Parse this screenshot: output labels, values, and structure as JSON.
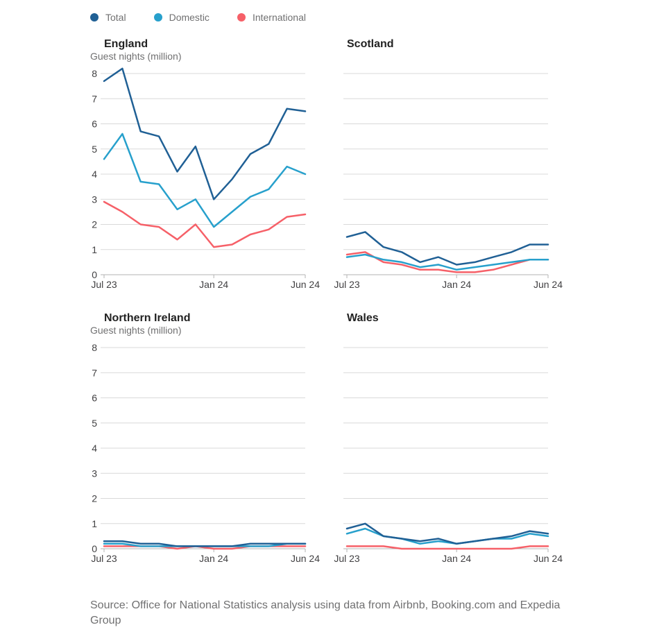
{
  "legend": [
    {
      "name": "Total",
      "color": "#206095"
    },
    {
      "name": "Domestic",
      "color": "#27a0cc"
    },
    {
      "name": "International",
      "color": "#f66068"
    }
  ],
  "source": "Source: Office for National Statistics analysis using data from Airbnb, Booking.com and Expedia Group",
  "chart_data": [
    {
      "type": "line",
      "title": "England",
      "ylabel": "Guest nights (million)",
      "ylim": [
        0,
        8
      ],
      "yticks": [
        0,
        1,
        2,
        3,
        4,
        5,
        6,
        7,
        8
      ],
      "x": [
        "Jul 23",
        "Aug 23",
        "Sep 23",
        "Oct 23",
        "Nov 23",
        "Dec 23",
        "Jan 24",
        "Feb 24",
        "Mar 24",
        "Apr 24",
        "May 24",
        "Jun 24"
      ],
      "xtick_labels": [
        "Jul 23",
        "Jan 24",
        "Jun 24"
      ],
      "grid": true,
      "series": [
        {
          "name": "Total",
          "values": [
            7.7,
            8.2,
            5.7,
            5.5,
            4.1,
            5.1,
            3.0,
            3.8,
            4.8,
            5.2,
            6.6,
            6.5
          ]
        },
        {
          "name": "Domestic",
          "values": [
            4.6,
            5.6,
            3.7,
            3.6,
            2.6,
            3.0,
            1.9,
            2.5,
            3.1,
            3.4,
            4.3,
            4.0
          ]
        },
        {
          "name": "International",
          "values": [
            2.9,
            2.5,
            2.0,
            1.9,
            1.4,
            2.0,
            1.1,
            1.2,
            1.6,
            1.8,
            2.3,
            2.4
          ]
        }
      ]
    },
    {
      "type": "line",
      "title": "Scotland",
      "ylabel": "",
      "ylim": [
        0,
        8
      ],
      "yticks": [
        0,
        1,
        2,
        3,
        4,
        5,
        6,
        7,
        8
      ],
      "x": [
        "Jul 23",
        "Aug 23",
        "Sep 23",
        "Oct 23",
        "Nov 23",
        "Dec 23",
        "Jan 24",
        "Feb 24",
        "Mar 24",
        "Apr 24",
        "May 24",
        "Jun 24"
      ],
      "xtick_labels": [
        "Jul 23",
        "Jan 24",
        "Jun 24"
      ],
      "grid": true,
      "series": [
        {
          "name": "Total",
          "values": [
            1.5,
            1.7,
            1.1,
            0.9,
            0.5,
            0.7,
            0.4,
            0.5,
            0.7,
            0.9,
            1.2,
            1.2
          ]
        },
        {
          "name": "Domestic",
          "values": [
            0.7,
            0.8,
            0.6,
            0.5,
            0.3,
            0.4,
            0.2,
            0.3,
            0.4,
            0.5,
            0.6,
            0.6
          ]
        },
        {
          "name": "International",
          "values": [
            0.8,
            0.9,
            0.5,
            0.4,
            0.2,
            0.2,
            0.1,
            0.1,
            0.2,
            0.4,
            0.6,
            0.6
          ]
        }
      ]
    },
    {
      "type": "line",
      "title": "Northern Ireland",
      "ylabel": "Guest nights (million)",
      "ylim": [
        0,
        8
      ],
      "yticks": [
        0,
        1,
        2,
        3,
        4,
        5,
        6,
        7,
        8
      ],
      "x": [
        "Jul 23",
        "Aug 23",
        "Sep 23",
        "Oct 23",
        "Nov 23",
        "Dec 23",
        "Jan 24",
        "Feb 24",
        "Mar 24",
        "Apr 24",
        "May 24",
        "Jun 24"
      ],
      "xtick_labels": [
        "Jul 23",
        "Jan 24",
        "Jun 24"
      ],
      "grid": true,
      "series": [
        {
          "name": "Total",
          "values": [
            0.3,
            0.3,
            0.2,
            0.2,
            0.1,
            0.1,
            0.1,
            0.1,
            0.2,
            0.2,
            0.2,
            0.2
          ]
        },
        {
          "name": "Domestic",
          "values": [
            0.2,
            0.2,
            0.1,
            0.1,
            0.1,
            0.1,
            0.1,
            0.1,
            0.1,
            0.1,
            0.2,
            0.2
          ]
        },
        {
          "name": "International",
          "values": [
            0.1,
            0.1,
            0.1,
            0.1,
            0.0,
            0.1,
            0.0,
            0.0,
            0.1,
            0.1,
            0.1,
            0.1
          ]
        }
      ]
    },
    {
      "type": "line",
      "title": "Wales",
      "ylabel": "",
      "ylim": [
        0,
        8
      ],
      "yticks": [
        0,
        1,
        2,
        3,
        4,
        5,
        6,
        7,
        8
      ],
      "x": [
        "Jul 23",
        "Aug 23",
        "Sep 23",
        "Oct 23",
        "Nov 23",
        "Dec 23",
        "Jan 24",
        "Feb 24",
        "Mar 24",
        "Apr 24",
        "May 24",
        "Jun 24"
      ],
      "xtick_labels": [
        "Jul 23",
        "Jan 24",
        "Jun 24"
      ],
      "grid": true,
      "series": [
        {
          "name": "Total",
          "values": [
            0.8,
            1.0,
            0.5,
            0.4,
            0.3,
            0.4,
            0.2,
            0.3,
            0.4,
            0.5,
            0.7,
            0.6
          ]
        },
        {
          "name": "Domestic",
          "values": [
            0.6,
            0.8,
            0.5,
            0.4,
            0.2,
            0.3,
            0.2,
            0.3,
            0.4,
            0.4,
            0.6,
            0.5
          ]
        },
        {
          "name": "International",
          "values": [
            0.1,
            0.1,
            0.1,
            0.0,
            0.0,
            0.0,
            0.0,
            0.0,
            0.0,
            0.0,
            0.1,
            0.1
          ]
        }
      ]
    }
  ]
}
